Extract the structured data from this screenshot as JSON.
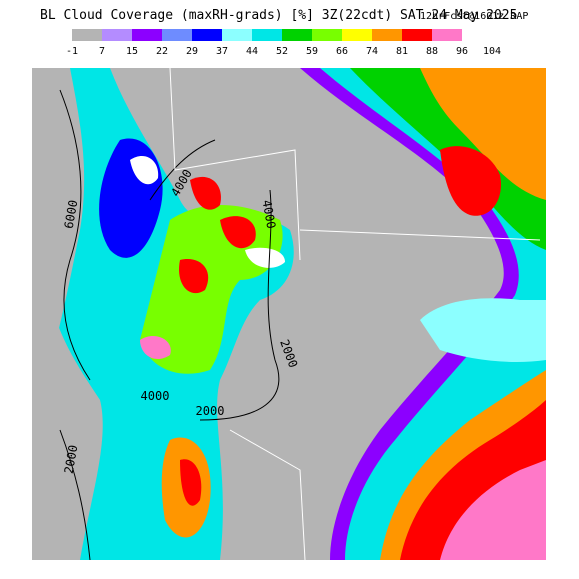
{
  "header": {
    "title": "BL Cloud Coverage (maxRH-grads) [%] 3Z(22cdt) SAT 24 May 2025",
    "subtitle": "12hrFcst@1601z RAP"
  },
  "colorbar": {
    "labels": [
      -1,
      7,
      15,
      22,
      29,
      37,
      44,
      52,
      59,
      66,
      74,
      81,
      88,
      96,
      104
    ],
    "colors": [
      "#b4b4b4",
      "#b48cff",
      "#8c00ff",
      "#6e8cff",
      "#0000ff",
      "#8cffff",
      "#00e6e6",
      "#00d200",
      "#78ff00",
      "#ffff00",
      "#ff9600",
      "#ff0000",
      "#ff78c8",
      "#ffffff"
    ]
  },
  "contour_labels": [
    "6000",
    "4000",
    "4000",
    "2000",
    "2000",
    "2000",
    "4000"
  ]
}
